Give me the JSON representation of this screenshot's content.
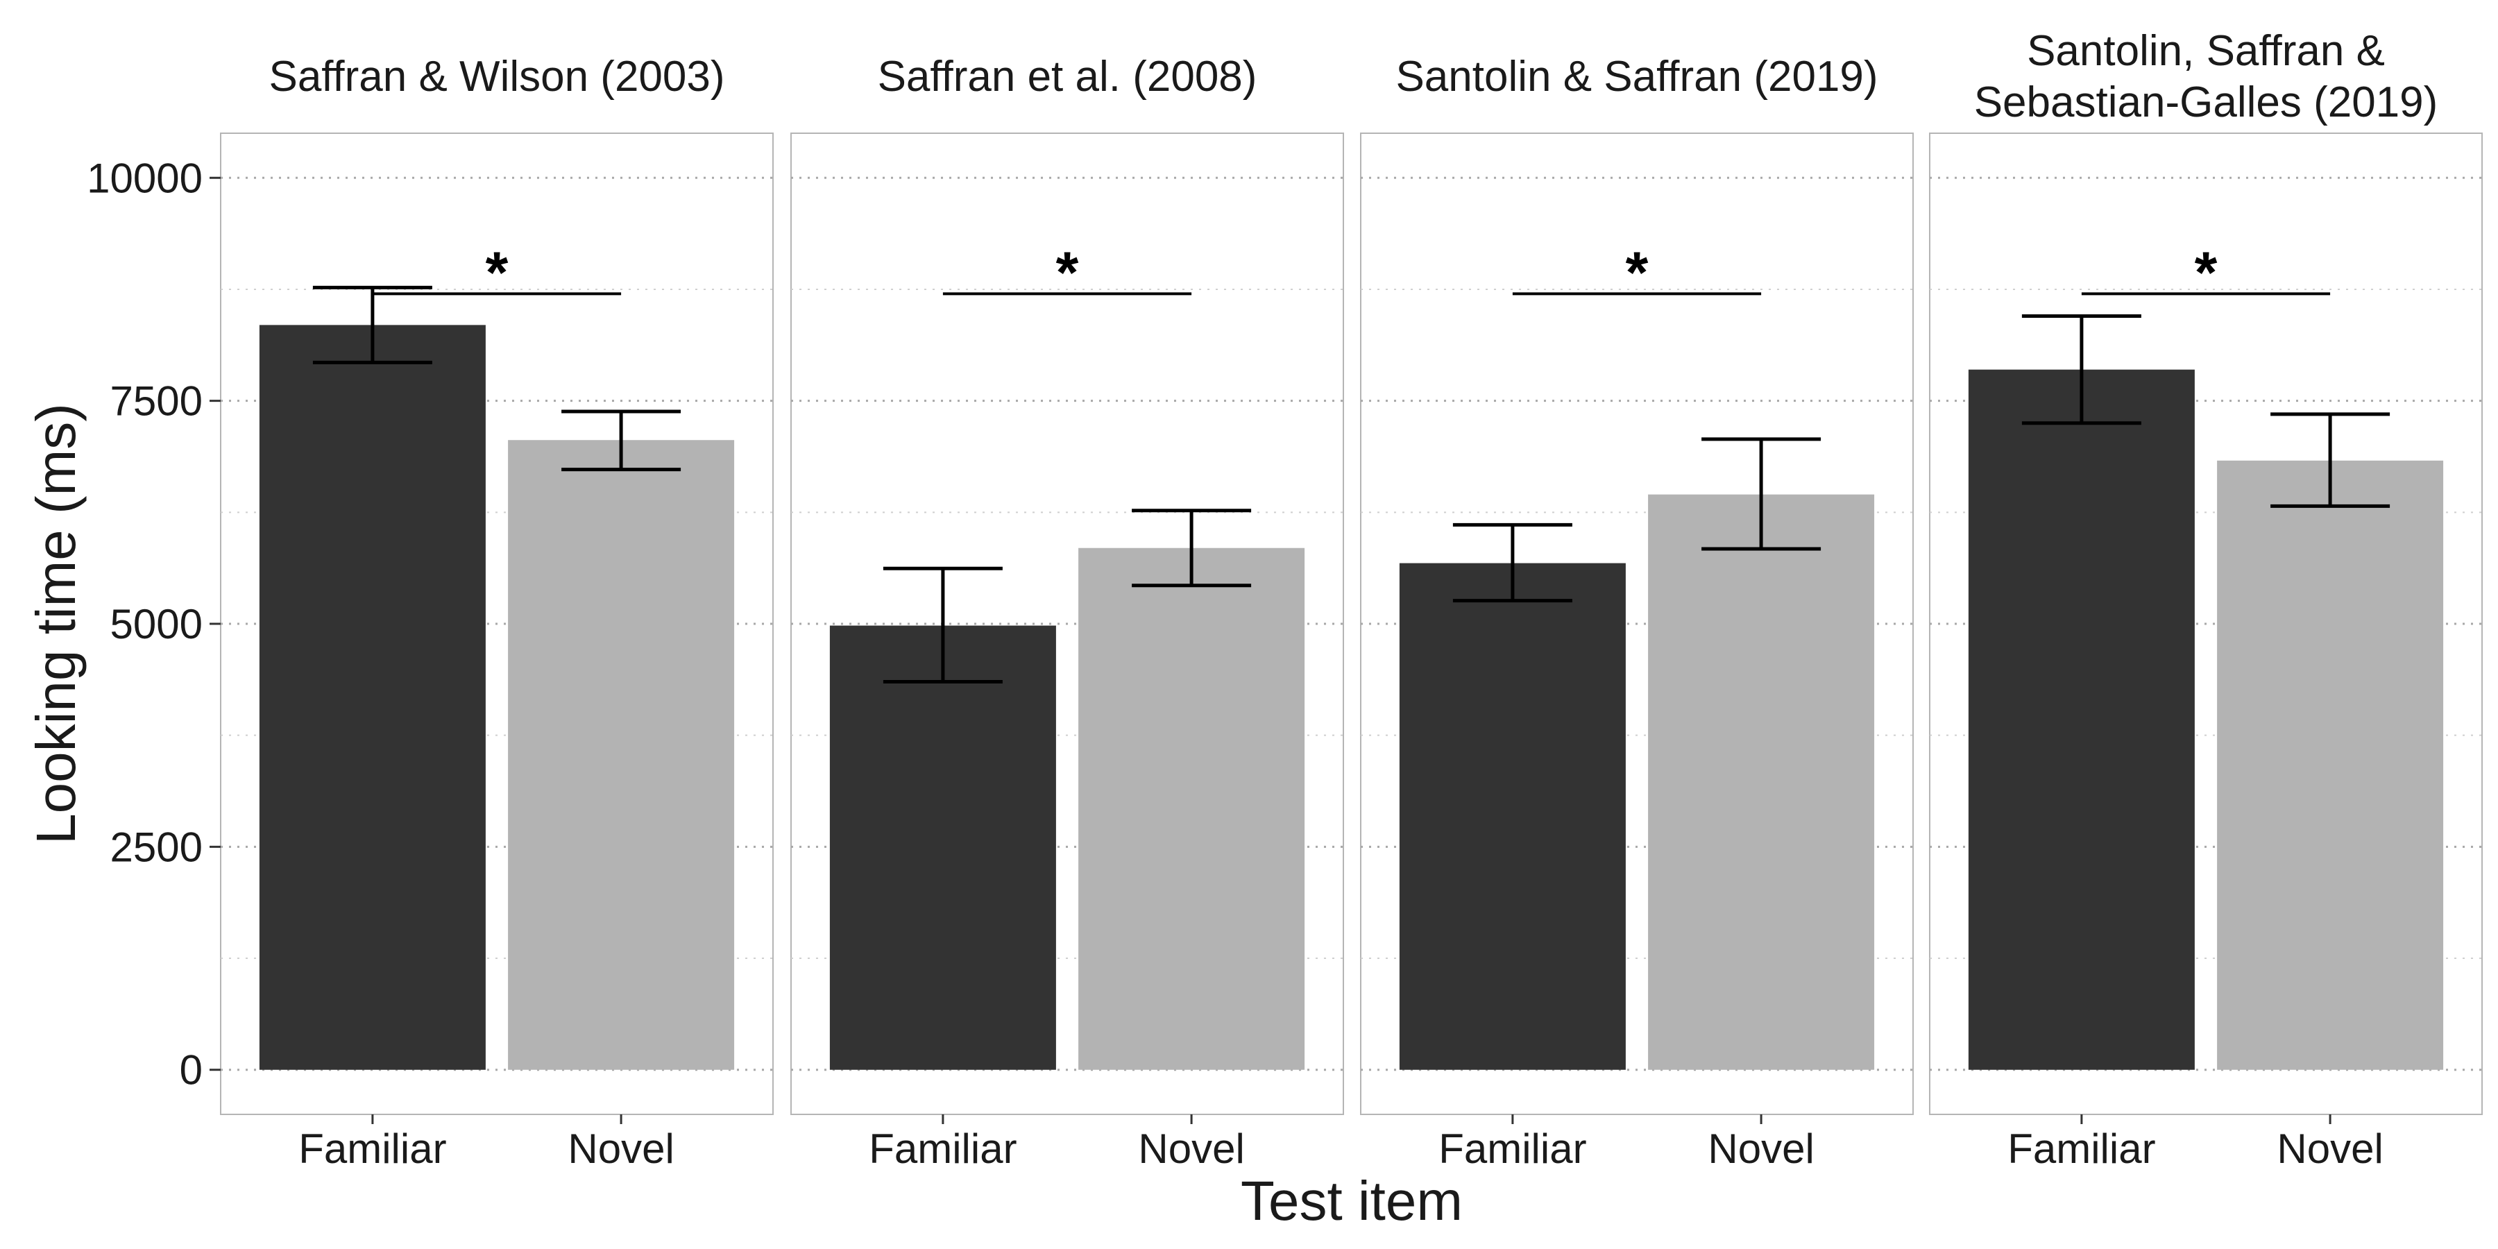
{
  "chart_data": {
    "type": "bar",
    "xlabel": "Test item",
    "ylabel": "Looking time (ms)",
    "ylim": [
      -500,
      10500
    ],
    "yticks": [
      0,
      2500,
      5000,
      7500,
      10000
    ],
    "ytick_labels": [
      "0",
      "2500",
      "5000",
      "7500",
      "10000"
    ],
    "grid": "dotted horizontal",
    "categories": [
      "Familiar",
      "Novel"
    ],
    "colors": {
      "Familiar": "#333333",
      "Novel": "#b3b3b3"
    },
    "significance_marker": "*",
    "panels": [
      {
        "title": "Saffran & Wilson (2003)",
        "values": [
          8350,
          7060
        ],
        "errors": [
          [
            7930,
            8770
          ],
          [
            6730,
            7380
          ]
        ],
        "significance_y": 8700
      },
      {
        "title": "Saffran et al. (2008)",
        "values": [
          4980,
          5850
        ],
        "errors": [
          [
            4350,
            5620
          ],
          [
            5430,
            6270
          ]
        ],
        "significance_y": 8700
      },
      {
        "title": "Santolin & Saffran (2019)",
        "values": [
          5680,
          6450
        ],
        "errors": [
          [
            5260,
            6110
          ],
          [
            5840,
            7070
          ]
        ],
        "significance_y": 8700
      },
      {
        "title": "Santolin, Saffran & Sebastian-Galles (2019)",
        "title_lines": [
          "Santolin, Saffran &",
          "Sebastian-Galles (2019)"
        ],
        "values": [
          7850,
          6830
        ],
        "errors": [
          [
            7250,
            8450
          ],
          [
            6320,
            7350
          ]
        ],
        "significance_y": 8700
      }
    ]
  }
}
